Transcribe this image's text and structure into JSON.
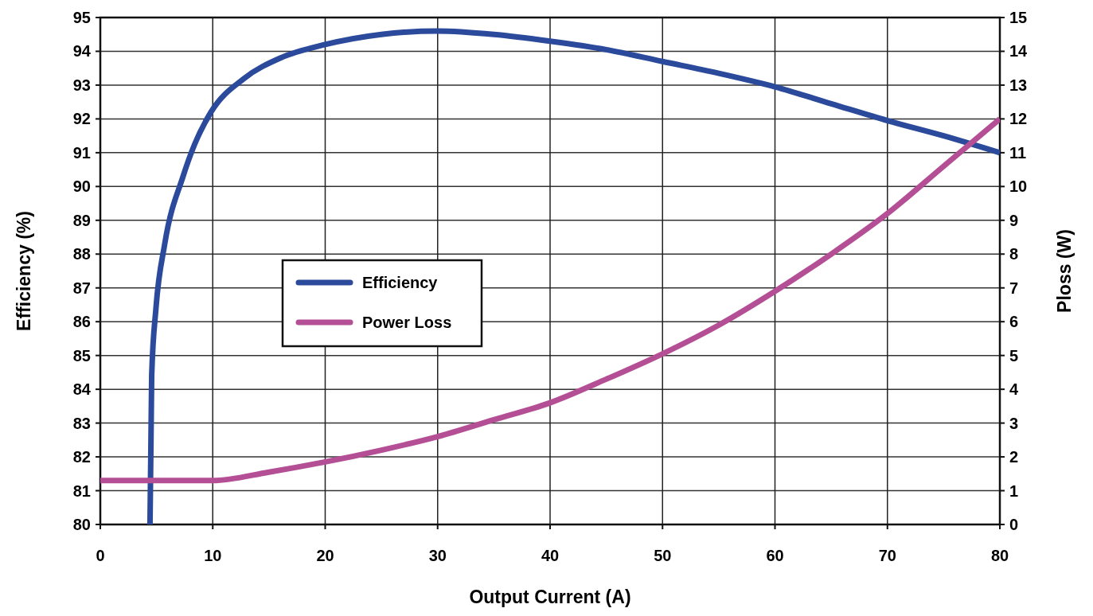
{
  "chart_data": {
    "type": "line",
    "xlabel": "Output Current (A)",
    "ylabel": "Efficiency (%)",
    "y2label": "Ploss (W)",
    "xlim": [
      0,
      80
    ],
    "xticks": [
      0,
      10,
      20,
      30,
      40,
      50,
      60,
      70,
      80
    ],
    "ylim": [
      80,
      95
    ],
    "yticks": [
      80,
      81,
      82,
      83,
      84,
      85,
      86,
      87,
      88,
      89,
      90,
      91,
      92,
      93,
      94,
      95
    ],
    "y2lim": [
      0,
      15
    ],
    "y2ticks": [
      0,
      1,
      2,
      3,
      4,
      5,
      6,
      7,
      8,
      9,
      10,
      11,
      12,
      13,
      14,
      15
    ],
    "grid": true,
    "legend": "left",
    "line_style": "solid",
    "marker": "none",
    "series": [
      {
        "name": "Efficiency",
        "color": "#2b4a9b",
        "x": [
          4.42,
          4.57,
          4.95,
          5.73,
          7.36,
          8.39,
          9.84,
          12.8,
          16,
          20,
          25,
          30,
          35,
          40,
          45,
          50,
          55,
          60,
          65,
          70,
          75,
          80
        ],
        "values": [
          80,
          84.4,
          86.4,
          88.3,
          90.3,
          91.25,
          92.2,
          93.2,
          93.8,
          94.2,
          94.5,
          94.6,
          94.5,
          94.3,
          94.05,
          93.7,
          93.35,
          92.95,
          92.45,
          91.95,
          91.5,
          91
        ]
      },
      {
        "name": "Power Loss",
        "color": "#b44f96",
        "axis": "y2",
        "x": [
          0,
          5,
          10,
          15,
          20,
          25,
          30,
          35,
          40,
          45,
          50,
          55,
          60,
          65,
          70,
          75,
          80
        ],
        "values": [
          1.3,
          1.3,
          1.3,
          1.55,
          1.85,
          2.2,
          2.6,
          3.1,
          3.6,
          4.3,
          5.05,
          5.9,
          6.9,
          8,
          9.2,
          10.6,
          12
        ]
      }
    ]
  }
}
